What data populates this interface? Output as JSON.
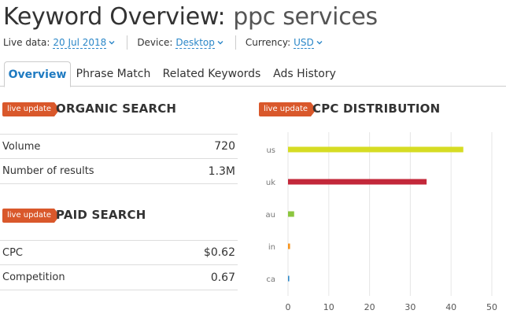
{
  "header": {
    "title": "Keyword Overview:",
    "keyword": "ppc services"
  },
  "meta": {
    "live_label": "Live data:",
    "live_value": "20 Jul 2018",
    "device_label": "Device:",
    "device_value": "Desktop",
    "currency_label": "Currency:",
    "currency_value": "USD"
  },
  "tabs": [
    {
      "label": "Overview",
      "active": true
    },
    {
      "label": "Phrase Match",
      "active": false
    },
    {
      "label": "Related Keywords",
      "active": false
    },
    {
      "label": "Ads History",
      "active": false
    }
  ],
  "organic": {
    "badge": "live update",
    "title": "ORGANIC SEARCH",
    "rows": [
      {
        "label": "Volume",
        "value": "720"
      },
      {
        "label": "Number of results",
        "value": "1.3M"
      }
    ]
  },
  "paid": {
    "badge": "live update",
    "title": "PAID SEARCH",
    "rows": [
      {
        "label": "CPC",
        "value": "$0.62"
      },
      {
        "label": "Competition",
        "value": "0.67"
      }
    ]
  },
  "cpc": {
    "badge": "live update",
    "title": "CPC DISTRIBUTION"
  },
  "colors": {
    "accent_blue": "#1e7ac1",
    "link_blue": "#2b87c8",
    "badge_orange": "#d9582b"
  },
  "chart_data": {
    "type": "bar",
    "orientation": "horizontal",
    "categories": [
      "us",
      "uk",
      "au",
      "in",
      "ca"
    ],
    "values": [
      43,
      34,
      1.5,
      0.5,
      0.3
    ],
    "colors": [
      "#d6dc23",
      "#c3283a",
      "#8cc63f",
      "#f7941d",
      "#2b87c8"
    ],
    "xlim": [
      0,
      50
    ],
    "xticks": [
      "0",
      "10",
      "20",
      "30",
      "40",
      "50"
    ],
    "grid": true
  }
}
